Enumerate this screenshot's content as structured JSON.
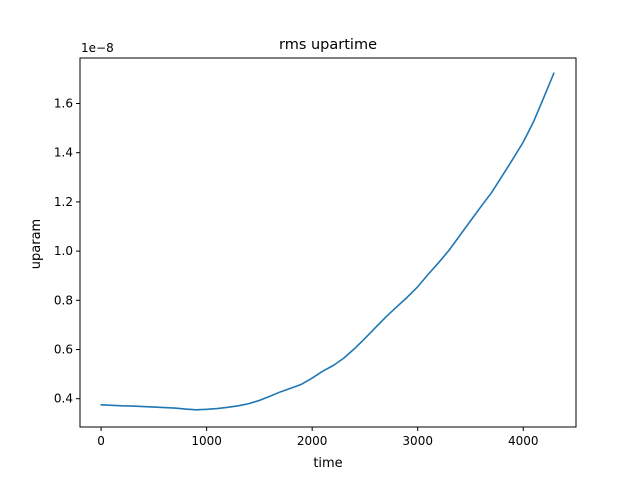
{
  "chart_data": {
    "type": "line",
    "title": "rms upartime",
    "xlabel": "time",
    "ylabel": "uparam",
    "y_offset_label": "1e−8",
    "xlim": [
      -200,
      4500
    ],
    "ylim": [
      0.285,
      1.785
    ],
    "grid": false,
    "xticks": [
      {
        "value": 0,
        "label": "0"
      },
      {
        "value": 1000,
        "label": "1000"
      },
      {
        "value": 2000,
        "label": "2000"
      },
      {
        "value": 3000,
        "label": "3000"
      },
      {
        "value": 4000,
        "label": "4000"
      }
    ],
    "yticks": [
      {
        "value": 0.4,
        "label": "0.4"
      },
      {
        "value": 0.6,
        "label": "0.6"
      },
      {
        "value": 0.8,
        "label": "0.8"
      },
      {
        "value": 1.0,
        "label": "1.0"
      },
      {
        "value": 1.2,
        "label": "1.2"
      },
      {
        "value": 1.4,
        "label": "1.4"
      },
      {
        "value": 1.6,
        "label": "1.6"
      }
    ],
    "series": [
      {
        "color": "#1f77b4",
        "x": [
          0,
          100,
          200,
          300,
          400,
          500,
          600,
          700,
          800,
          900,
          1000,
          1100,
          1200,
          1300,
          1400,
          1500,
          1600,
          1700,
          1800,
          1900,
          2000,
          2100,
          2200,
          2300,
          2400,
          2500,
          2600,
          2700,
          2800,
          2900,
          3000,
          3100,
          3200,
          3300,
          3400,
          3500,
          3600,
          3700,
          3800,
          3900,
          4000,
          4100,
          4200,
          4290
        ],
        "y": [
          0.375,
          0.373,
          0.371,
          0.37,
          0.368,
          0.366,
          0.364,
          0.362,
          0.358,
          0.355,
          0.357,
          0.36,
          0.365,
          0.371,
          0.38,
          0.393,
          0.41,
          0.428,
          0.443,
          0.459,
          0.484,
          0.512,
          0.535,
          0.565,
          0.603,
          0.645,
          0.689,
          0.733,
          0.773,
          0.812,
          0.855,
          0.906,
          0.954,
          1.005,
          1.064,
          1.123,
          1.181,
          1.238,
          1.305,
          1.373,
          1.443,
          1.528,
          1.63,
          1.723
        ]
      }
    ]
  }
}
